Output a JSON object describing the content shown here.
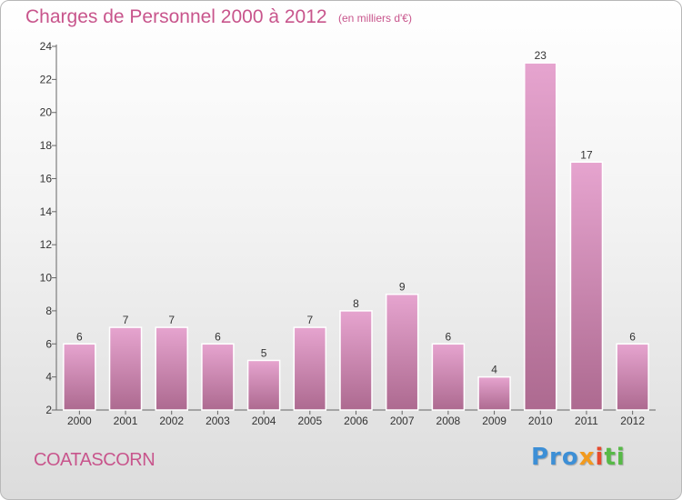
{
  "header": {
    "title": "Charges de Personnel 2000 à 2012",
    "subtitle": "(en milliers d'€)"
  },
  "footer": {
    "commune": "COATASCORN",
    "logo": {
      "p1": "Pro",
      "p2": "x",
      "p3": "i",
      "p4": "ti"
    }
  },
  "colors": {
    "accent": "#c8558c",
    "bar_top": "#e6a4cf",
    "bar_bottom": "#ad6a90"
  },
  "chart_data": {
    "type": "bar",
    "categories": [
      "2000",
      "2001",
      "2002",
      "2003",
      "2004",
      "2005",
      "2006",
      "2007",
      "2008",
      "2009",
      "2010",
      "2011",
      "2012"
    ],
    "values": [
      6,
      7,
      7,
      6,
      5,
      7,
      8,
      9,
      6,
      4,
      23,
      17,
      6
    ],
    "ylim": [
      2,
      24
    ],
    "yticks": [
      2,
      4,
      6,
      8,
      10,
      12,
      14,
      16,
      18,
      20,
      22,
      24
    ],
    "grid": false,
    "data_labels": true
  }
}
